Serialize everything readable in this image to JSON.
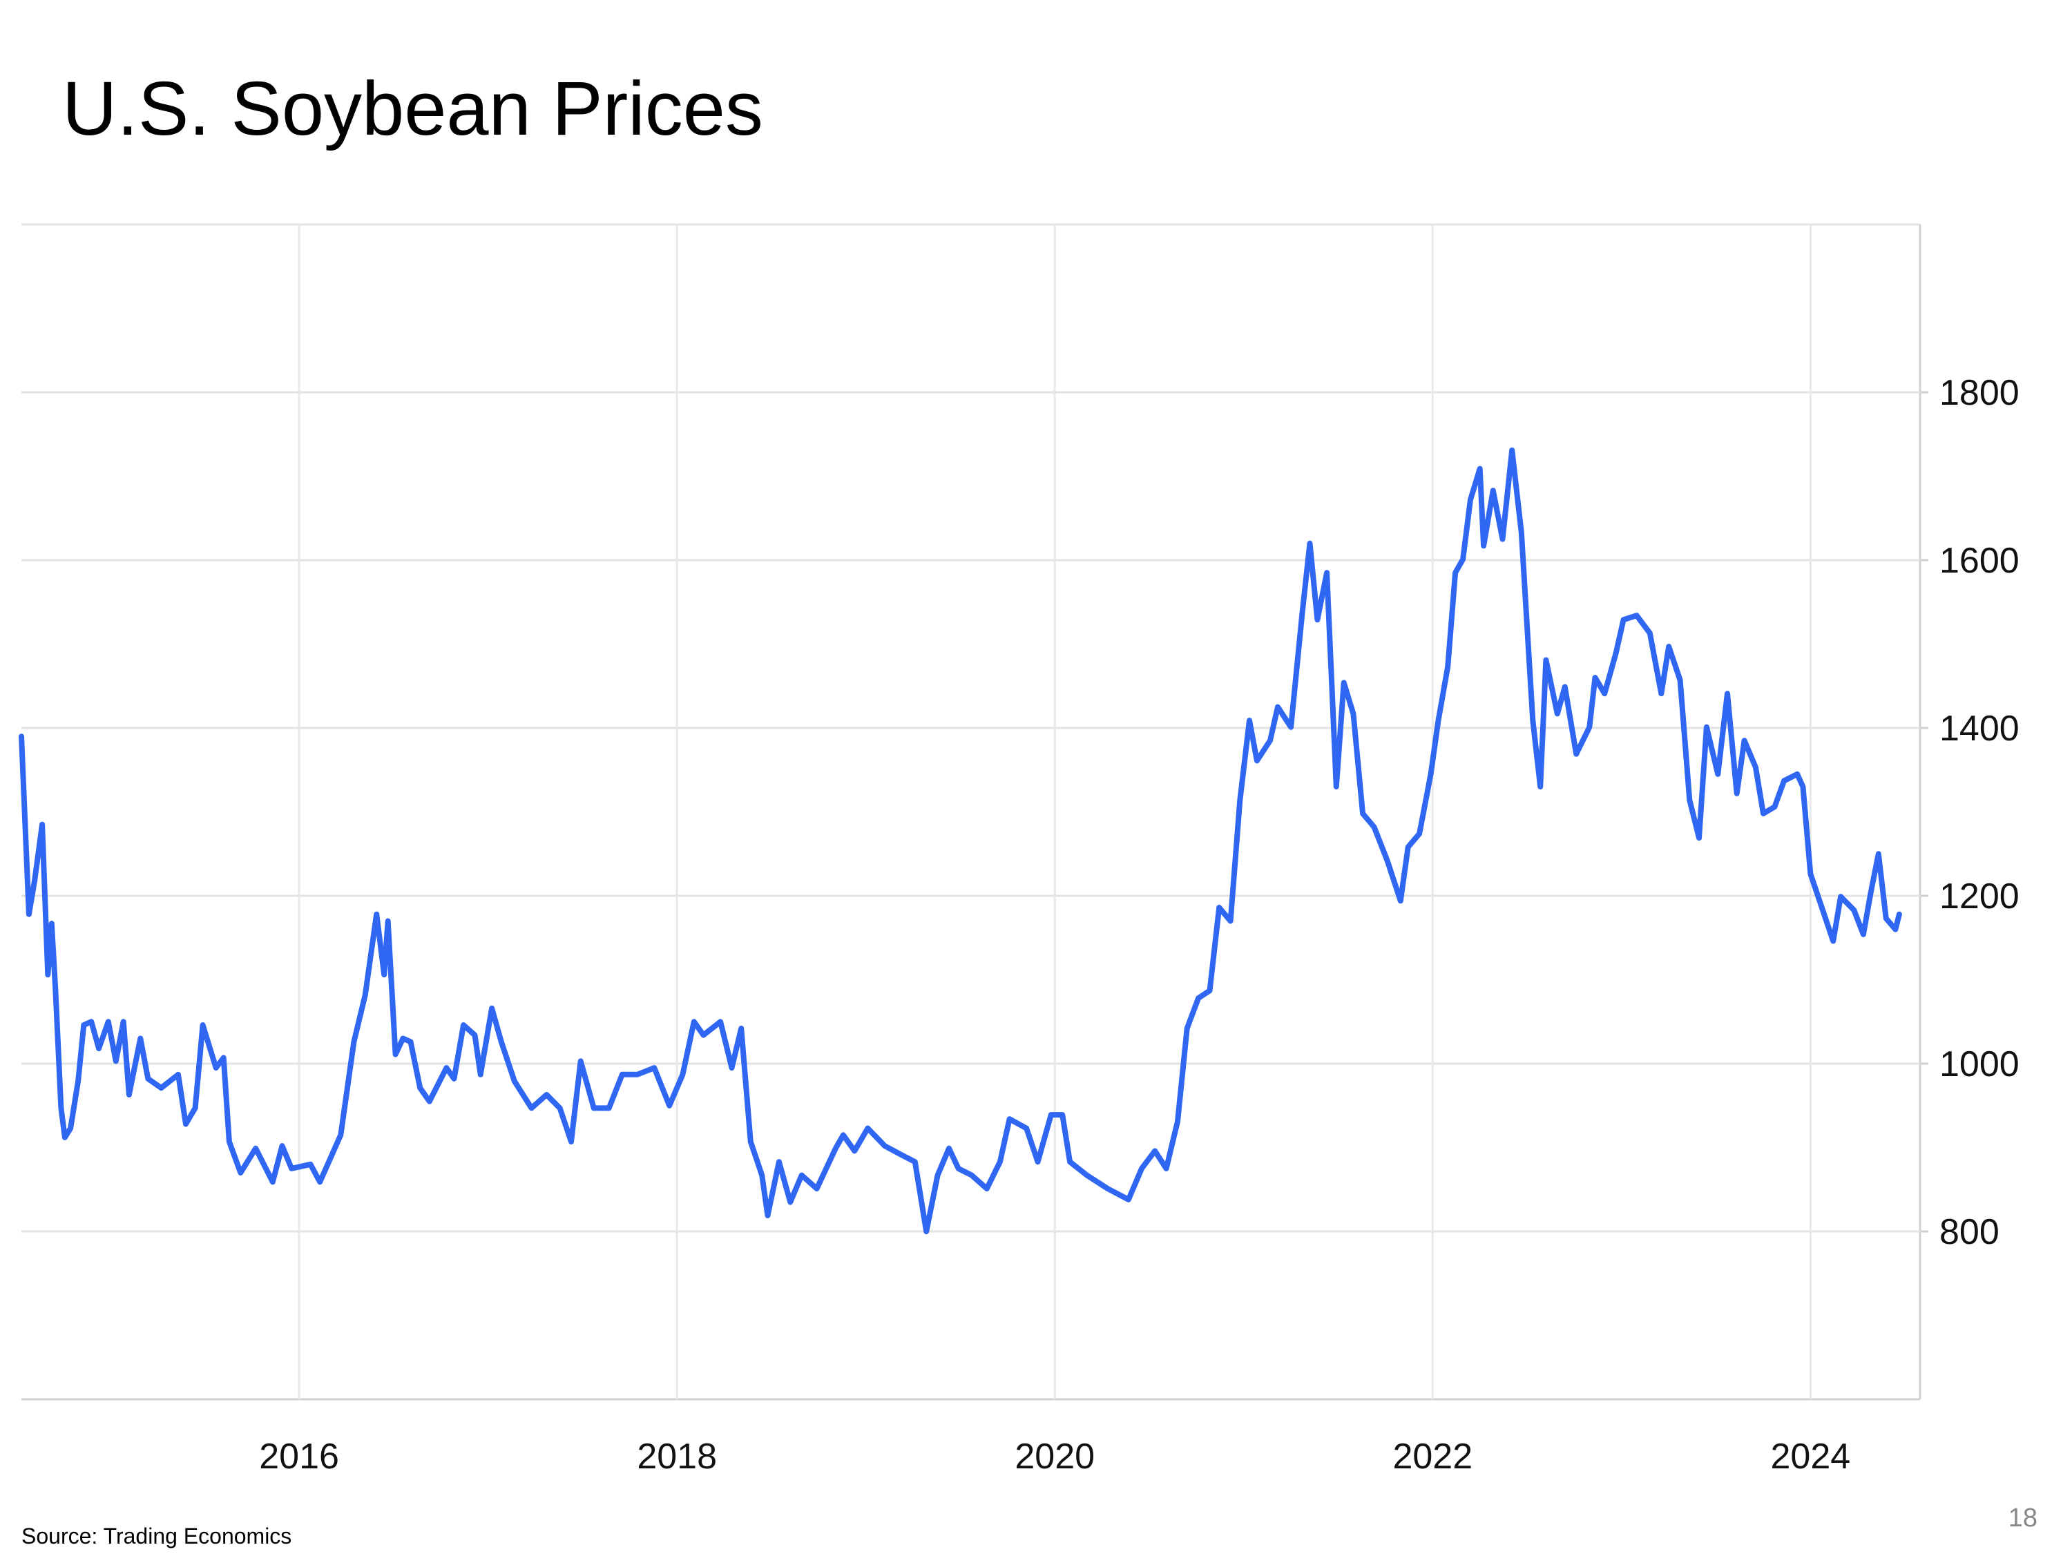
{
  "chart_data": {
    "type": "line",
    "title": "U.S. Soybean Prices",
    "color": "#2f66f2",
    "grid": true,
    "xlim": [
      2014.53,
      2024.58
    ],
    "xticks": [
      2016,
      2018,
      2020,
      2022,
      2024
    ],
    "ylim": [
      600,
      2000
    ],
    "yticks": [
      800,
      1000,
      1200,
      1400,
      1600,
      1800
    ],
    "x": [
      2014.53,
      2014.57,
      2014.6,
      2014.64,
      2014.67,
      2014.69,
      2014.71,
      2014.74,
      2014.76,
      2014.79,
      2014.83,
      2014.86,
      2014.9,
      2014.94,
      2014.99,
      2015.03,
      2015.07,
      2015.1,
      2015.16,
      2015.2,
      2015.27,
      2015.36,
      2015.4,
      2015.45,
      2015.49,
      2015.56,
      2015.6,
      2015.63,
      2015.69,
      2015.77,
      2015.86,
      2015.91,
      2015.96,
      2016.06,
      2016.11,
      2016.22,
      2016.29,
      2016.35,
      2016.41,
      2016.45,
      2016.47,
      2016.51,
      2016.55,
      2016.59,
      2016.64,
      2016.69,
      2016.78,
      2016.82,
      2016.87,
      2016.93,
      2016.96,
      2017.02,
      2017.07,
      2017.14,
      2017.23,
      2017.31,
      2017.38,
      2017.44,
      2017.49,
      2017.56,
      2017.64,
      2017.71,
      2017.79,
      2017.88,
      2017.96,
      2018.03,
      2018.09,
      2018.14,
      2018.23,
      2018.29,
      2018.34,
      2018.39,
      2018.45,
      2018.48,
      2018.54,
      2018.6,
      2018.66,
      2018.74,
      2018.84,
      2018.88,
      2018.94,
      2019.01,
      2019.1,
      2019.19,
      2019.26,
      2019.32,
      2019.38,
      2019.44,
      2019.49,
      2019.56,
      2019.64,
      2019.71,
      2019.76,
      2019.85,
      2019.91,
      2019.98,
      2020.04,
      2020.08,
      2020.17,
      2020.28,
      2020.39,
      2020.46,
      2020.53,
      2020.59,
      2020.65,
      2020.7,
      2020.76,
      2020.82,
      2020.87,
      2020.93,
      2020.98,
      2021.03,
      2021.07,
      2021.14,
      2021.18,
      2021.25,
      2021.31,
      2021.35,
      2021.39,
      2021.44,
      2021.49,
      2021.53,
      2021.58,
      2021.63,
      2021.69,
      2021.76,
      2021.83,
      2021.87,
      2021.93,
      2021.99,
      2022.03,
      2022.08,
      2022.12,
      2022.16,
      2022.2,
      2022.25,
      2022.27,
      2022.32,
      2022.37,
      2022.42,
      2022.47,
      2022.53,
      2022.57,
      2022.6,
      2022.66,
      2022.7,
      2022.76,
      2022.83,
      2022.86,
      2022.91,
      2022.97,
      2023.01,
      2023.08,
      2023.15,
      2023.21,
      2023.25,
      2023.31,
      2023.36,
      2023.41,
      2023.45,
      2023.51,
      2023.56,
      2023.61,
      2023.65,
      2023.71,
      2023.75,
      2023.81,
      2023.86,
      2023.93,
      2023.96,
      2024.0,
      2024.06,
      2024.12,
      2024.16,
      2024.23,
      2024.28,
      2024.32,
      2024.36,
      2024.4,
      2024.45,
      2024.47
    ],
    "values": [
      1390,
      1178,
      1218,
      1285,
      1106,
      1167,
      1090,
      947,
      912,
      923,
      979,
      1046,
      1050,
      1018,
      1050,
      1003,
      1050,
      963,
      1030,
      982,
      971,
      987,
      928,
      947,
      1046,
      995,
      1007,
      907,
      870,
      899,
      859,
      902,
      875,
      880,
      859,
      915,
      1026,
      1082,
      1178,
      1106,
      1170,
      1011,
      1030,
      1026,
      971,
      955,
      995,
      982,
      1046,
      1034,
      987,
      1066,
      1026,
      979,
      947,
      963,
      947,
      907,
      1003,
      947,
      947,
      987,
      987,
      995,
      950,
      987,
      1050,
      1034,
      1050,
      995,
      1042,
      907,
      867,
      819,
      883,
      835,
      867,
      851,
      899,
      915,
      896,
      923,
      902,
      891,
      883,
      800,
      867,
      899,
      875,
      867,
      851,
      883,
      934,
      923,
      883,
      939,
      939,
      883,
      867,
      851,
      838,
      875,
      896,
      875,
      931,
      1042,
      1078,
      1087,
      1186,
      1170,
      1314,
      1409,
      1361,
      1385,
      1425,
      1401,
      1537,
      1620,
      1529,
      1585,
      1330,
      1454,
      1417,
      1298,
      1282,
      1242,
      1194,
      1258,
      1274,
      1345,
      1409,
      1473,
      1585,
      1601,
      1672,
      1709,
      1617,
      1683,
      1625,
      1731,
      1633,
      1409,
      1330,
      1481,
      1417,
      1449,
      1369,
      1401,
      1460,
      1441,
      1489,
      1529,
      1534,
      1513,
      1441,
      1497,
      1457,
      1314,
      1269,
      1401,
      1345,
      1441,
      1322,
      1385,
      1353,
      1298,
      1306,
      1337,
      1345,
      1330,
      1226,
      1186,
      1146,
      1199,
      1183,
      1154,
      1205,
      1250,
      1173,
      1160,
      1178
    ]
  },
  "footer": {
    "source": "Source: Trading Economics",
    "page_number": "18"
  }
}
